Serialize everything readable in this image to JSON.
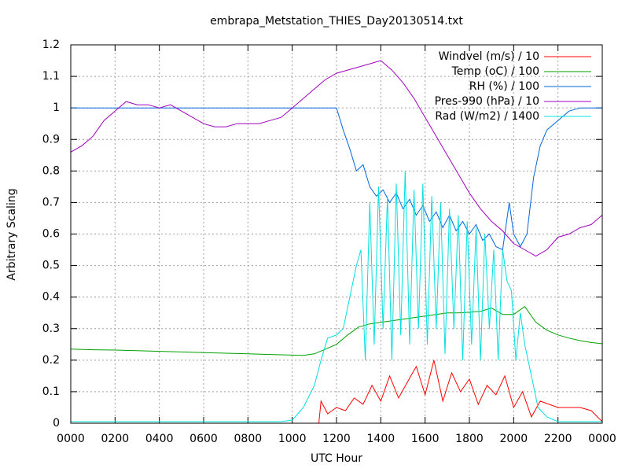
{
  "chart_data": {
    "type": "line",
    "title": "embrapa_Metstation_THIES_Day20130514.txt",
    "x_label": "UTC Hour",
    "y_label": "Arbitrary Scaling",
    "xlim": [
      0,
      24
    ],
    "xticks": [
      {
        "value": 0,
        "label": "0000"
      },
      {
        "value": 2,
        "label": "0200"
      },
      {
        "value": 4,
        "label": "0400"
      },
      {
        "value": 6,
        "label": "0600"
      },
      {
        "value": 8,
        "label": "0800"
      },
      {
        "value": 10,
        "label": "1000"
      },
      {
        "value": 12,
        "label": "1200"
      },
      {
        "value": 14,
        "label": "1400"
      },
      {
        "value": 16,
        "label": "1600"
      },
      {
        "value": 18,
        "label": "1800"
      },
      {
        "value": 20,
        "label": "2000"
      },
      {
        "value": 22,
        "label": "2200"
      },
      {
        "value": 24,
        "label": "0000"
      }
    ],
    "ylim": [
      0,
      1.2
    ],
    "yticks": [
      0,
      0.1,
      0.2,
      0.3,
      0.4,
      0.5,
      0.6,
      0.7,
      0.8,
      0.9,
      1,
      1.1,
      1.2
    ],
    "grid": true,
    "legend": "top-right",
    "series": [
      {
        "name": "Windvel (m/s) / 10",
        "color": "#ff0000",
        "x": [
          0,
          11.2,
          11.3,
          11.6,
          12,
          12.4,
          12.8,
          13.2,
          13.6,
          14,
          14.4,
          14.8,
          15.2,
          15.6,
          16,
          16.4,
          16.8,
          17.2,
          17.6,
          18,
          18.4,
          18.8,
          19.2,
          19.6,
          20,
          20.4,
          20.8,
          21.2,
          21.6,
          22,
          22.5,
          23,
          23.5,
          24
        ],
        "values": [
          0,
          0,
          0.07,
          0.03,
          0.05,
          0.04,
          0.08,
          0.06,
          0.12,
          0.07,
          0.15,
          0.08,
          0.13,
          0.18,
          0.09,
          0.2,
          0.07,
          0.16,
          0.1,
          0.14,
          0.06,
          0.12,
          0.09,
          0.15,
          0.05,
          0.1,
          0.02,
          0.07,
          0.06,
          0.05,
          0.05,
          0.05,
          0.04,
          0.005
        ]
      },
      {
        "name": "Temp (oC) / 100",
        "color": "#00a000",
        "x": [
          0,
          1,
          2,
          3,
          4,
          5,
          6,
          7,
          8,
          9,
          10,
          10.5,
          11,
          11.5,
          12,
          12.5,
          13,
          13.5,
          14,
          14.5,
          15,
          15.5,
          16,
          16.5,
          17,
          17.5,
          18,
          18.5,
          19,
          19.5,
          20,
          20.5,
          21,
          21.5,
          22,
          22.5,
          23,
          23.5,
          24
        ],
        "values": [
          0.235,
          0.233,
          0.232,
          0.23,
          0.228,
          0.226,
          0.224,
          0.222,
          0.22,
          0.218,
          0.216,
          0.215,
          0.22,
          0.235,
          0.25,
          0.28,
          0.305,
          0.315,
          0.32,
          0.325,
          0.33,
          0.335,
          0.34,
          0.345,
          0.35,
          0.35,
          0.352,
          0.355,
          0.365,
          0.345,
          0.345,
          0.37,
          0.32,
          0.295,
          0.28,
          0.27,
          0.262,
          0.256,
          0.252
        ]
      },
      {
        "name": "RH (%) / 100",
        "color": "#0066dd",
        "x": [
          0,
          12,
          12.3,
          12.6,
          12.9,
          13.2,
          13.5,
          13.8,
          14.1,
          14.4,
          14.7,
          15,
          15.3,
          15.6,
          15.9,
          16.2,
          16.5,
          16.8,
          17.1,
          17.4,
          17.7,
          18,
          18.3,
          18.6,
          18.9,
          19.2,
          19.5,
          19.8,
          20,
          20.3,
          20.6,
          20.9,
          21.2,
          21.5,
          22,
          22.5,
          23,
          24
        ],
        "values": [
          1,
          1,
          0.93,
          0.87,
          0.8,
          0.82,
          0.75,
          0.72,
          0.74,
          0.7,
          0.73,
          0.68,
          0.71,
          0.66,
          0.69,
          0.64,
          0.67,
          0.62,
          0.66,
          0.61,
          0.64,
          0.6,
          0.63,
          0.58,
          0.6,
          0.56,
          0.55,
          0.7,
          0.6,
          0.56,
          0.6,
          0.78,
          0.88,
          0.93,
          0.96,
          0.99,
          1,
          1
        ]
      },
      {
        "name": "Pres-990 (hPa) / 10",
        "color": "#a000c0",
        "x": [
          0,
          0.5,
          1,
          1.5,
          2,
          2.5,
          3,
          3.5,
          4,
          4.5,
          5,
          5.5,
          6,
          6.5,
          7,
          7.5,
          8,
          8.5,
          9,
          9.5,
          10,
          10.5,
          11,
          11.5,
          12,
          12.5,
          13,
          13.5,
          14,
          14.5,
          15,
          15.5,
          16,
          16.5,
          17,
          17.5,
          18,
          18.5,
          19,
          19.5,
          20,
          20.5,
          21,
          21.5,
          22,
          22.5,
          23,
          23.5,
          24
        ],
        "values": [
          0.86,
          0.88,
          0.91,
          0.96,
          0.99,
          1.02,
          1.01,
          1.01,
          1.0,
          1.01,
          0.99,
          0.97,
          0.95,
          0.94,
          0.94,
          0.95,
          0.95,
          0.95,
          0.96,
          0.97,
          1.0,
          1.03,
          1.06,
          1.09,
          1.11,
          1.12,
          1.13,
          1.14,
          1.15,
          1.12,
          1.08,
          1.03,
          0.97,
          0.91,
          0.85,
          0.79,
          0.73,
          0.68,
          0.64,
          0.61,
          0.57,
          0.55,
          0.53,
          0.55,
          0.59,
          0.6,
          0.62,
          0.63,
          0.66
        ]
      },
      {
        "name": "Rad (W/m2) / 1400",
        "color": "#00e0e0",
        "x": [
          0,
          9.5,
          10,
          10.5,
          11,
          11.3,
          11.6,
          12,
          12.3,
          12.6,
          12.9,
          13.1,
          13.3,
          13.5,
          13.7,
          13.9,
          14.1,
          14.3,
          14.5,
          14.7,
          14.9,
          15.1,
          15.3,
          15.5,
          15.7,
          15.9,
          16.1,
          16.3,
          16.5,
          16.7,
          16.9,
          17.1,
          17.3,
          17.5,
          17.7,
          17.9,
          18.1,
          18.3,
          18.5,
          18.7,
          18.9,
          19.1,
          19.3,
          19.5,
          19.7,
          19.9,
          20.1,
          20.3,
          20.5,
          20.8,
          21.1,
          21.5,
          22,
          24
        ],
        "values": [
          0.005,
          0.005,
          0.01,
          0.05,
          0.12,
          0.2,
          0.27,
          0.28,
          0.3,
          0.4,
          0.5,
          0.55,
          0.2,
          0.7,
          0.25,
          0.75,
          0.3,
          0.72,
          0.2,
          0.76,
          0.28,
          0.8,
          0.25,
          0.74,
          0.3,
          0.76,
          0.25,
          0.72,
          0.3,
          0.7,
          0.22,
          0.68,
          0.3,
          0.66,
          0.2,
          0.64,
          0.25,
          0.62,
          0.2,
          0.6,
          0.3,
          0.55,
          0.2,
          0.55,
          0.45,
          0.42,
          0.2,
          0.35,
          0.25,
          0.15,
          0.05,
          0.02,
          0.005,
          0.005
        ]
      }
    ]
  }
}
